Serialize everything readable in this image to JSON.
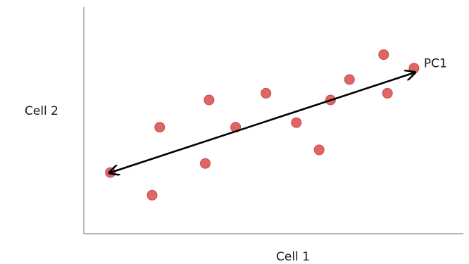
{
  "chart_data": {
    "type": "scatter",
    "xlabel": "Cell 1",
    "ylabel": "Cell 2",
    "xlim": [
      0,
      100
    ],
    "ylim": [
      0,
      100
    ],
    "grid": false,
    "point_color": "#e06666",
    "point_stroke": "#c94a4a",
    "points": [
      {
        "x": 7,
        "y": 27
      },
      {
        "x": 18,
        "y": 17
      },
      {
        "x": 20,
        "y": 47
      },
      {
        "x": 32,
        "y": 31
      },
      {
        "x": 33,
        "y": 59
      },
      {
        "x": 40,
        "y": 47
      },
      {
        "x": 48,
        "y": 62
      },
      {
        "x": 56,
        "y": 49
      },
      {
        "x": 62,
        "y": 37
      },
      {
        "x": 65,
        "y": 59
      },
      {
        "x": 70,
        "y": 68
      },
      {
        "x": 79,
        "y": 79
      },
      {
        "x": 80,
        "y": 62
      },
      {
        "x": 87,
        "y": 73
      }
    ],
    "principal_component": {
      "label": "PC1",
      "from": {
        "x": 7,
        "y": 27
      },
      "to": {
        "x": 87,
        "y": 71
      },
      "color": "#000000",
      "double_headed": true
    }
  }
}
